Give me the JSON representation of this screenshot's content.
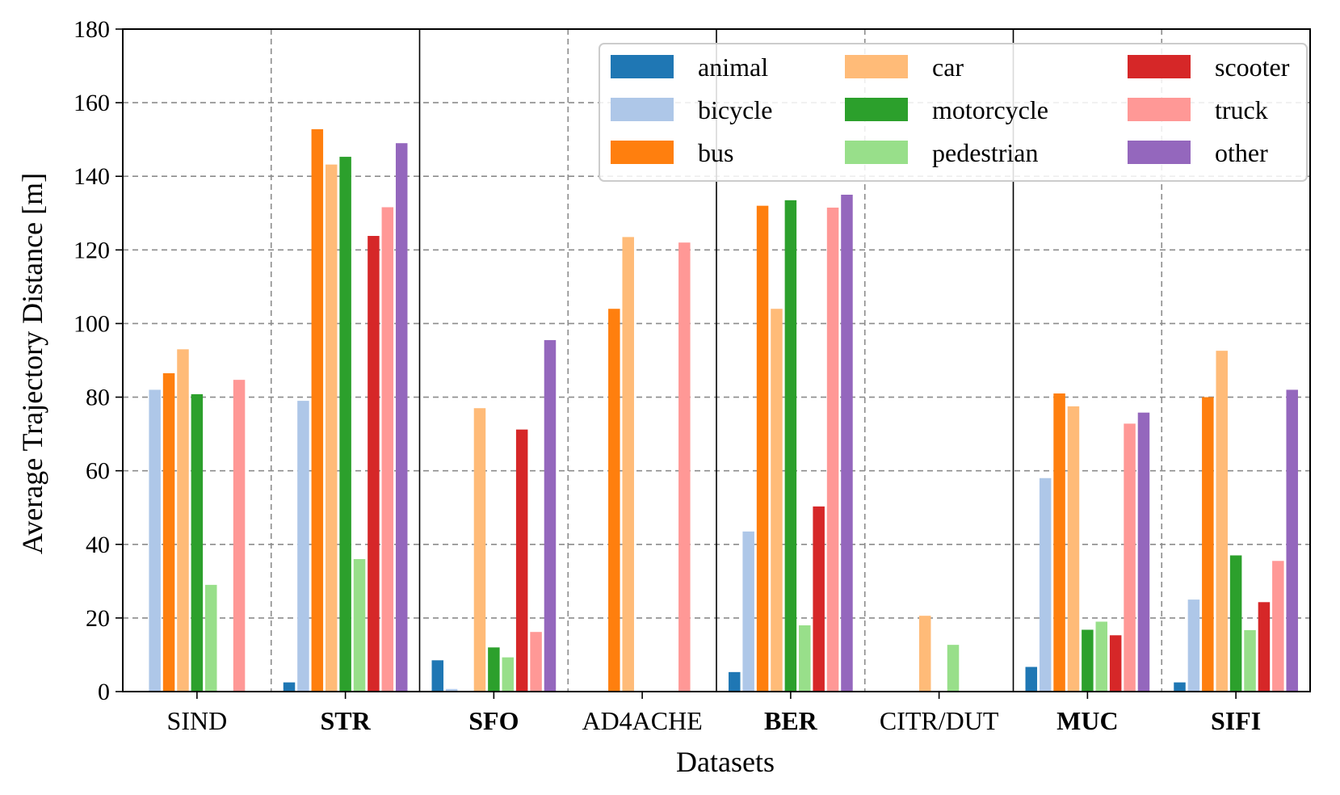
{
  "chart_data": {
    "type": "bar",
    "title": "",
    "xlabel": "Datasets",
    "ylabel": "Average Trajectory Distance [m]",
    "ylim": [
      0,
      180
    ],
    "yticks": [
      0,
      20,
      40,
      60,
      80,
      100,
      120,
      140,
      160,
      180
    ],
    "grid": "horizontal dashed",
    "legend_position": "top-right",
    "categories": [
      "SIND",
      "STR",
      "SFO",
      "AD4ACHE",
      "BER",
      "CITR/DUT",
      "MUC",
      "SIFI"
    ],
    "bold_categories": [
      "STR",
      "SFO",
      "BER",
      "MUC",
      "SIFI"
    ],
    "series": [
      {
        "name": "animal",
        "color": "#1f77b4",
        "values": [
          0,
          2.5,
          8.5,
          0,
          5.3,
          0,
          6.7,
          2.5
        ]
      },
      {
        "name": "bicycle",
        "color": "#aec7e8",
        "values": [
          82,
          79,
          0.7,
          0,
          43.5,
          0,
          58,
          25
        ]
      },
      {
        "name": "bus",
        "color": "#ff7f0e",
        "values": [
          86.5,
          152.8,
          0,
          104,
          132,
          0,
          81,
          80
        ]
      },
      {
        "name": "car",
        "color": "#ffbb78",
        "values": [
          93,
          143.2,
          77,
          123.5,
          104,
          20.6,
          77.5,
          92.6
        ]
      },
      {
        "name": "motorcycle",
        "color": "#2ca02c",
        "values": [
          80.8,
          145.3,
          12,
          0,
          133.5,
          0,
          16.8,
          37
        ]
      },
      {
        "name": "pedestrian",
        "color": "#98df8a",
        "values": [
          29,
          36,
          9.3,
          0,
          18,
          12.7,
          19,
          16.7
        ]
      },
      {
        "name": "scooter",
        "color": "#d62728",
        "values": [
          0,
          123.8,
          71.2,
          0,
          50.3,
          0,
          15.3,
          24.3
        ]
      },
      {
        "name": "truck",
        "color": "#ff9896",
        "values": [
          84.7,
          131.6,
          16.2,
          122,
          131.5,
          0,
          72.8,
          35.5
        ]
      },
      {
        "name": "other",
        "color": "#9467bd",
        "values": [
          0,
          149,
          95.5,
          0,
          135,
          0,
          75.8,
          82
        ]
      }
    ]
  }
}
